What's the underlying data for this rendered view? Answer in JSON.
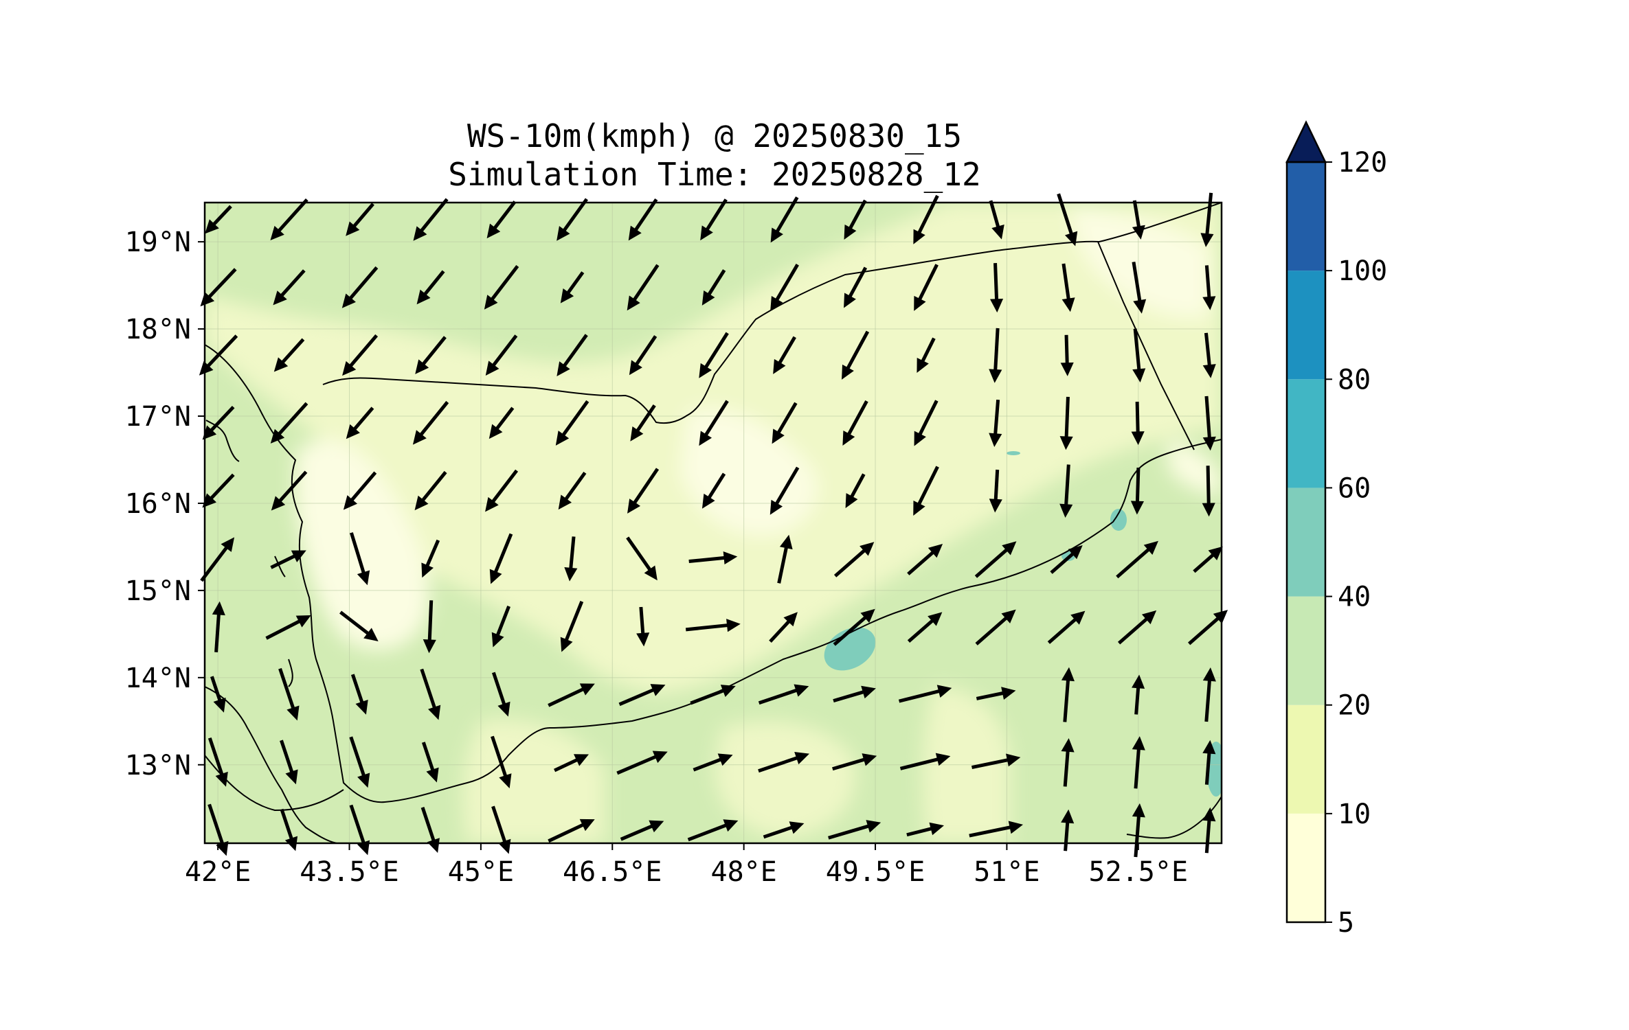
{
  "title": {
    "line1": "WS-10m(kmph) @ 20250830_15",
    "line2": "Simulation Time: 20250828_12"
  },
  "map": {
    "lon_range": [
      41.85,
      53.45
    ],
    "lat_range": [
      12.1,
      19.45
    ],
    "x_ticks": [
      "42°E",
      "43.5°E",
      "45°E",
      "46.5°E",
      "48°E",
      "49.5°E",
      "51°E",
      "52.5°E"
    ],
    "x_tick_values": [
      42,
      43.5,
      45,
      46.5,
      48,
      49.5,
      51,
      52.5
    ],
    "y_ticks": [
      "13°N",
      "14°N",
      "15°N",
      "16°N",
      "17°N",
      "18°N",
      "19°N"
    ],
    "y_tick_values": [
      13,
      14,
      15,
      16,
      17,
      18,
      19
    ],
    "grid": true,
    "background_color": "#d8eeb4"
  },
  "colorbar": {
    "levels": [
      "5",
      "10",
      "20",
      "40",
      "60",
      "80",
      "100",
      "120"
    ],
    "colors": [
      "#ffffd9",
      "#edf8b1",
      "#c7e9b4",
      "#7fcdbb",
      "#41b6c4",
      "#1d91c0",
      "#225ea8",
      "#253494"
    ],
    "extend_color": "#081d58",
    "extend": "max"
  }
}
